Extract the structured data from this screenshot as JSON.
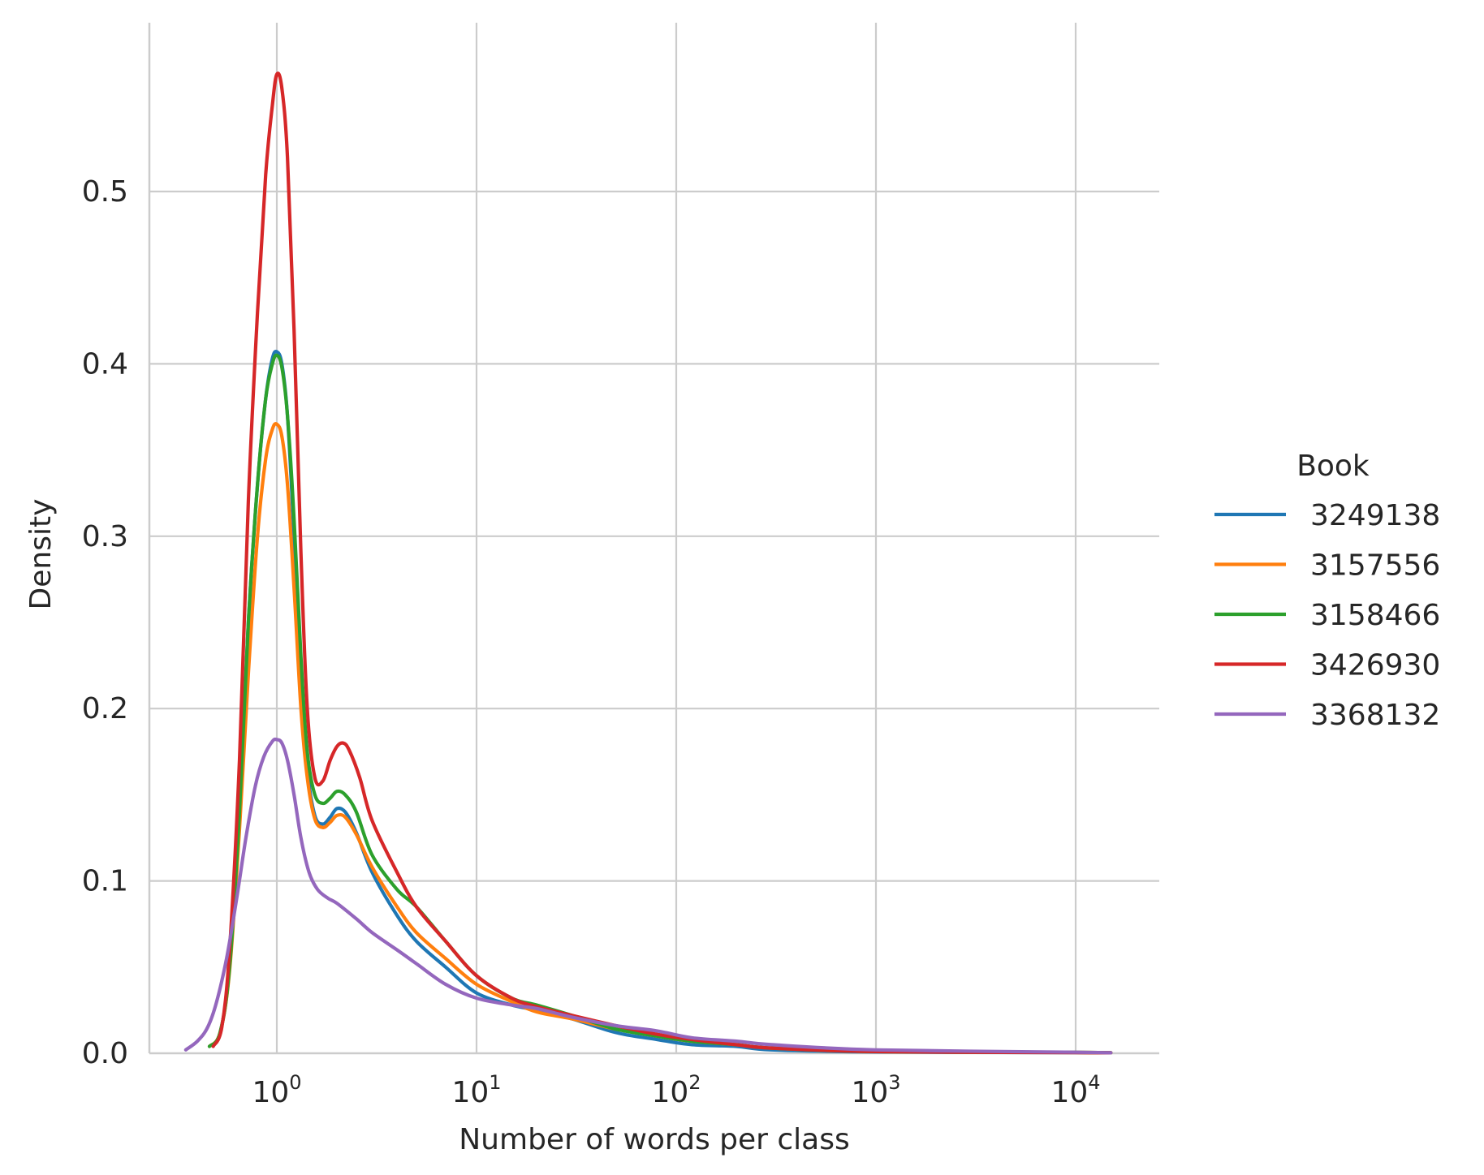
{
  "chart_data": {
    "type": "line",
    "title": "",
    "xlabel": "Number of words per class",
    "ylabel": "Density",
    "xscale": "log",
    "xlim": [
      0.3,
      25000
    ],
    "ylim": [
      0,
      0.59
    ],
    "x_ticks": [
      {
        "value": 1,
        "base": "10",
        "exp": "0"
      },
      {
        "value": 10,
        "base": "10",
        "exp": "1"
      },
      {
        "value": 100,
        "base": "10",
        "exp": "2"
      },
      {
        "value": 1000,
        "base": "10",
        "exp": "3"
      },
      {
        "value": 10000,
        "base": "10",
        "exp": "4"
      }
    ],
    "y_ticks": [
      {
        "value": 0.0,
        "label": "0.0"
      },
      {
        "value": 0.1,
        "label": "0.1"
      },
      {
        "value": 0.2,
        "label": "0.2"
      },
      {
        "value": 0.3,
        "label": "0.3"
      },
      {
        "value": 0.4,
        "label": "0.4"
      },
      {
        "value": 0.5,
        "label": "0.5"
      }
    ],
    "grid": true,
    "legend": {
      "title": "Book",
      "position": "right"
    },
    "series": [
      {
        "name": "3249138",
        "color": "#1f77b4",
        "points": [
          [
            0.46,
            0.004
          ],
          [
            0.52,
            0.012
          ],
          [
            0.58,
            0.05
          ],
          [
            0.65,
            0.14
          ],
          [
            0.72,
            0.25
          ],
          [
            0.8,
            0.33
          ],
          [
            0.88,
            0.38
          ],
          [
            0.95,
            0.403
          ],
          [
            1.0,
            0.407
          ],
          [
            1.06,
            0.4
          ],
          [
            1.13,
            0.37
          ],
          [
            1.22,
            0.3
          ],
          [
            1.32,
            0.22
          ],
          [
            1.42,
            0.165
          ],
          [
            1.55,
            0.138
          ],
          [
            1.7,
            0.133
          ],
          [
            1.85,
            0.137
          ],
          [
            2.0,
            0.142
          ],
          [
            2.2,
            0.14
          ],
          [
            2.5,
            0.128
          ],
          [
            3.0,
            0.105
          ],
          [
            4.0,
            0.08
          ],
          [
            5.0,
            0.065
          ],
          [
            7.0,
            0.05
          ],
          [
            10,
            0.035
          ],
          [
            15,
            0.028
          ],
          [
            20,
            0.025
          ],
          [
            30,
            0.02
          ],
          [
            50,
            0.012
          ],
          [
            80,
            0.008
          ],
          [
            120,
            0.005
          ],
          [
            200,
            0.004
          ],
          [
            300,
            0.002
          ],
          [
            1000,
            0.0008
          ],
          [
            10000,
            0.0004
          ],
          [
            15000,
            0.0003
          ]
        ]
      },
      {
        "name": "3157556",
        "color": "#ff7f0e",
        "points": [
          [
            0.46,
            0.004
          ],
          [
            0.52,
            0.012
          ],
          [
            0.58,
            0.048
          ],
          [
            0.65,
            0.13
          ],
          [
            0.72,
            0.22
          ],
          [
            0.8,
            0.3
          ],
          [
            0.88,
            0.345
          ],
          [
            0.95,
            0.362
          ],
          [
            1.0,
            0.365
          ],
          [
            1.06,
            0.358
          ],
          [
            1.13,
            0.33
          ],
          [
            1.22,
            0.27
          ],
          [
            1.32,
            0.2
          ],
          [
            1.42,
            0.16
          ],
          [
            1.55,
            0.136
          ],
          [
            1.7,
            0.131
          ],
          [
            1.85,
            0.134
          ],
          [
            2.0,
            0.138
          ],
          [
            2.2,
            0.137
          ],
          [
            2.5,
            0.127
          ],
          [
            3.0,
            0.108
          ],
          [
            4.0,
            0.085
          ],
          [
            5.0,
            0.07
          ],
          [
            7.0,
            0.055
          ],
          [
            10,
            0.04
          ],
          [
            15,
            0.03
          ],
          [
            20,
            0.024
          ],
          [
            30,
            0.02
          ],
          [
            50,
            0.014
          ],
          [
            80,
            0.01
          ],
          [
            120,
            0.007
          ],
          [
            200,
            0.005
          ],
          [
            300,
            0.003
          ],
          [
            1000,
            0.001
          ],
          [
            10000,
            0.0005
          ],
          [
            15000,
            0.0003
          ]
        ]
      },
      {
        "name": "3158466",
        "color": "#2ca02c",
        "points": [
          [
            0.46,
            0.004
          ],
          [
            0.52,
            0.012
          ],
          [
            0.58,
            0.05
          ],
          [
            0.65,
            0.14
          ],
          [
            0.72,
            0.25
          ],
          [
            0.8,
            0.33
          ],
          [
            0.88,
            0.38
          ],
          [
            0.95,
            0.4
          ],
          [
            1.0,
            0.405
          ],
          [
            1.06,
            0.398
          ],
          [
            1.13,
            0.37
          ],
          [
            1.22,
            0.31
          ],
          [
            1.32,
            0.23
          ],
          [
            1.42,
            0.175
          ],
          [
            1.55,
            0.15
          ],
          [
            1.7,
            0.145
          ],
          [
            1.85,
            0.148
          ],
          [
            2.0,
            0.152
          ],
          [
            2.2,
            0.15
          ],
          [
            2.5,
            0.14
          ],
          [
            3.0,
            0.115
          ],
          [
            4.0,
            0.095
          ],
          [
            5.0,
            0.085
          ],
          [
            7.0,
            0.065
          ],
          [
            10,
            0.045
          ],
          [
            15,
            0.032
          ],
          [
            20,
            0.028
          ],
          [
            30,
            0.022
          ],
          [
            50,
            0.014
          ],
          [
            80,
            0.01
          ],
          [
            120,
            0.007
          ],
          [
            200,
            0.005
          ],
          [
            300,
            0.003
          ],
          [
            1000,
            0.001
          ],
          [
            10000,
            0.0005
          ],
          [
            15000,
            0.0003
          ]
        ]
      },
      {
        "name": "3426930",
        "color": "#d62728",
        "points": [
          [
            0.48,
            0.004
          ],
          [
            0.53,
            0.015
          ],
          [
            0.58,
            0.06
          ],
          [
            0.65,
            0.17
          ],
          [
            0.72,
            0.32
          ],
          [
            0.8,
            0.43
          ],
          [
            0.88,
            0.51
          ],
          [
            0.95,
            0.55
          ],
          [
            1.0,
            0.568
          ],
          [
            1.06,
            0.56
          ],
          [
            1.13,
            0.52
          ],
          [
            1.22,
            0.42
          ],
          [
            1.32,
            0.29
          ],
          [
            1.42,
            0.2
          ],
          [
            1.55,
            0.16
          ],
          [
            1.7,
            0.158
          ],
          [
            1.85,
            0.17
          ],
          [
            2.0,
            0.178
          ],
          [
            2.15,
            0.18
          ],
          [
            2.3,
            0.176
          ],
          [
            2.6,
            0.16
          ],
          [
            3.0,
            0.135
          ],
          [
            4.0,
            0.105
          ],
          [
            5.0,
            0.085
          ],
          [
            7.0,
            0.065
          ],
          [
            10,
            0.045
          ],
          [
            15,
            0.032
          ],
          [
            20,
            0.027
          ],
          [
            30,
            0.022
          ],
          [
            50,
            0.016
          ],
          [
            80,
            0.011
          ],
          [
            120,
            0.008
          ],
          [
            200,
            0.005
          ],
          [
            300,
            0.003
          ],
          [
            1000,
            0.001
          ],
          [
            10000,
            0.0004
          ],
          [
            15000,
            0.0003
          ]
        ]
      },
      {
        "name": "3368132",
        "color": "#9467bd",
        "points": [
          [
            0.35,
            0.002
          ],
          [
            0.4,
            0.007
          ],
          [
            0.45,
            0.015
          ],
          [
            0.5,
            0.03
          ],
          [
            0.56,
            0.055
          ],
          [
            0.63,
            0.09
          ],
          [
            0.7,
            0.125
          ],
          [
            0.78,
            0.155
          ],
          [
            0.86,
            0.172
          ],
          [
            0.95,
            0.181
          ],
          [
            1.0,
            0.182
          ],
          [
            1.06,
            0.18
          ],
          [
            1.13,
            0.17
          ],
          [
            1.22,
            0.15
          ],
          [
            1.32,
            0.125
          ],
          [
            1.45,
            0.105
          ],
          [
            1.6,
            0.095
          ],
          [
            1.8,
            0.09
          ],
          [
            2.0,
            0.087
          ],
          [
            2.5,
            0.078
          ],
          [
            3.0,
            0.07
          ],
          [
            4.0,
            0.06
          ],
          [
            5.0,
            0.052
          ],
          [
            7.0,
            0.04
          ],
          [
            10,
            0.032
          ],
          [
            15,
            0.028
          ],
          [
            20,
            0.026
          ],
          [
            30,
            0.021
          ],
          [
            50,
            0.016
          ],
          [
            80,
            0.013
          ],
          [
            120,
            0.009
          ],
          [
            200,
            0.007
          ],
          [
            300,
            0.005
          ],
          [
            1000,
            0.002
          ],
          [
            10000,
            0.0006
          ],
          [
            15000,
            0.0003
          ]
        ]
      }
    ]
  }
}
